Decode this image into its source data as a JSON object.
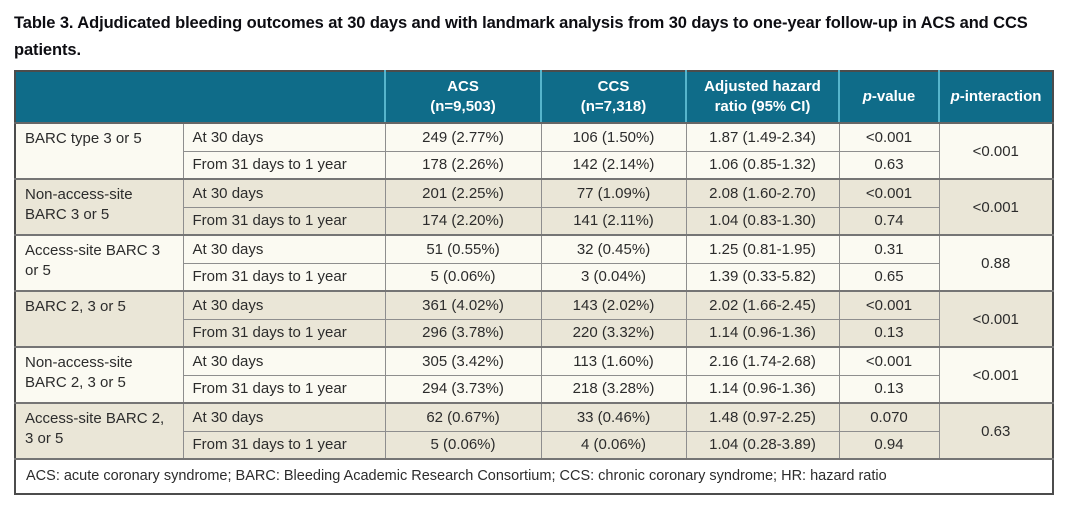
{
  "title": "Table 3. Adjudicated bleeding outcomes at 30 days and with landmark analysis from 30 days to one-year follow-up in ACS and CCS patients.",
  "colors": {
    "header_bg": "#0f6c89",
    "header_divider": "#56b5cc",
    "header_text": "#ffffff",
    "row_cream": "#fbfaf2",
    "row_beige": "#eae6d7",
    "border_inner": "#8e8e8e",
    "border_group": "#757575",
    "border_outer": "#4c4c4c",
    "body_text": "#2c2c2c"
  },
  "table": {
    "headers": {
      "acs": {
        "line1": "ACS",
        "line2": "(n=9,503)"
      },
      "ccs": {
        "line1": "CCS",
        "line2": "(n=7,318)"
      },
      "ahr": "Adjusted hazard ratio (95% CI)",
      "p_value": {
        "italic": "p",
        "rest": "-value"
      },
      "p_interaction": {
        "italic": "p",
        "rest": "-interaction"
      }
    },
    "groups": [
      {
        "outcome": "BARC type 3 or 5",
        "p_interaction": "<0.001",
        "rows": [
          {
            "period": "At 30 days",
            "acs": "249 (2.77%)",
            "ccs": "106 (1.50%)",
            "ahr": "1.87 (1.49-2.34)",
            "p": "<0.001"
          },
          {
            "period": "From 31 days to 1 year",
            "acs": "178 (2.26%)",
            "ccs": "142 (2.14%)",
            "ahr": "1.06 (0.85-1.32)",
            "p": "0.63"
          }
        ]
      },
      {
        "outcome": "Non-access-site BARC 3 or 5",
        "p_interaction": "<0.001",
        "rows": [
          {
            "period": "At 30 days",
            "acs": "201 (2.25%)",
            "ccs": "77 (1.09%)",
            "ahr": "2.08 (1.60-2.70)",
            "p": "<0.001"
          },
          {
            "period": "From 31 days to 1 year",
            "acs": "174 (2.20%)",
            "ccs": "141 (2.11%)",
            "ahr": "1.04 (0.83-1.30)",
            "p": "0.74"
          }
        ]
      },
      {
        "outcome": "Access-site BARC 3 or 5",
        "p_interaction": "0.88",
        "rows": [
          {
            "period": "At 30 days",
            "acs": "51 (0.55%)",
            "ccs": "32 (0.45%)",
            "ahr": "1.25 (0.81-1.95)",
            "p": "0.31"
          },
          {
            "period": "From 31 days to 1 year",
            "acs": "5 (0.06%)",
            "ccs": "3 (0.04%)",
            "ahr": "1.39 (0.33-5.82)",
            "p": "0.65"
          }
        ]
      },
      {
        "outcome": "BARC 2, 3 or 5",
        "p_interaction": "<0.001",
        "rows": [
          {
            "period": "At 30 days",
            "acs": "361 (4.02%)",
            "ccs": "143 (2.02%)",
            "ahr": "2.02 (1.66-2.45)",
            "p": "<0.001"
          },
          {
            "period": "From 31 days to 1 year",
            "acs": "296 (3.78%)",
            "ccs": "220 (3.32%)",
            "ahr": "1.14 (0.96-1.36)",
            "p": "0.13"
          }
        ]
      },
      {
        "outcome": "Non-access-site BARC 2, 3 or 5",
        "p_interaction": "<0.001",
        "rows": [
          {
            "period": "At 30 days",
            "acs": "305 (3.42%)",
            "ccs": "113 (1.60%)",
            "ahr": "2.16 (1.74-2.68)",
            "p": "<0.001"
          },
          {
            "period": "From 31 days to 1 year",
            "acs": "294 (3.73%)",
            "ccs": "218 (3.28%)",
            "ahr": "1.14 (0.96-1.36)",
            "p": "0.13"
          }
        ]
      },
      {
        "outcome": "Access-site BARC 2, 3 or 5",
        "p_interaction": "0.63",
        "rows": [
          {
            "period": "At 30 days",
            "acs": "62 (0.67%)",
            "ccs": "33 (0.46%)",
            "ahr": "1.48 (0.97-2.25)",
            "p": "0.070"
          },
          {
            "period": "From 31 days to 1 year",
            "acs": "5 (0.06%)",
            "ccs": "4 (0.06%)",
            "ahr": "1.04 (0.28-3.89)",
            "p": "0.94"
          }
        ]
      }
    ],
    "footnote": "ACS: acute coronary syndrome; BARC: Bleeding Academic Research Consortium; CCS: chronic coronary syndrome; HR: hazard ratio"
  }
}
